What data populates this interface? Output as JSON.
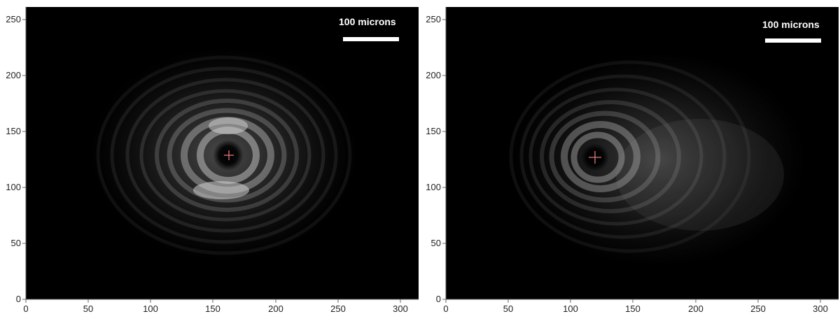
{
  "panels": [
    {
      "id": "left",
      "x_ticks": [
        "0",
        "50",
        "100",
        "150",
        "200",
        "250",
        "300"
      ],
      "y_ticks": [
        "0",
        "50",
        "100",
        "150",
        "200",
        "250"
      ],
      "scale_bar_label": "100 microns",
      "x_range": [
        0,
        315
      ],
      "y_range": [
        0,
        260
      ],
      "marker_position": [
        163,
        128
      ],
      "marker_color": "#e07a7a",
      "background": "#000000"
    },
    {
      "id": "right",
      "x_ticks": [
        "0",
        "50",
        "100",
        "150",
        "200",
        "250",
        "300"
      ],
      "y_ticks": [
        "0",
        "50",
        "100",
        "150",
        "200",
        "250"
      ],
      "scale_bar_label": "100 microns",
      "x_range": [
        0,
        315
      ],
      "y_range": [
        0,
        260
      ],
      "marker_position": [
        118,
        127
      ],
      "marker_color": "#e07a7a",
      "background": "#000000"
    }
  ]
}
